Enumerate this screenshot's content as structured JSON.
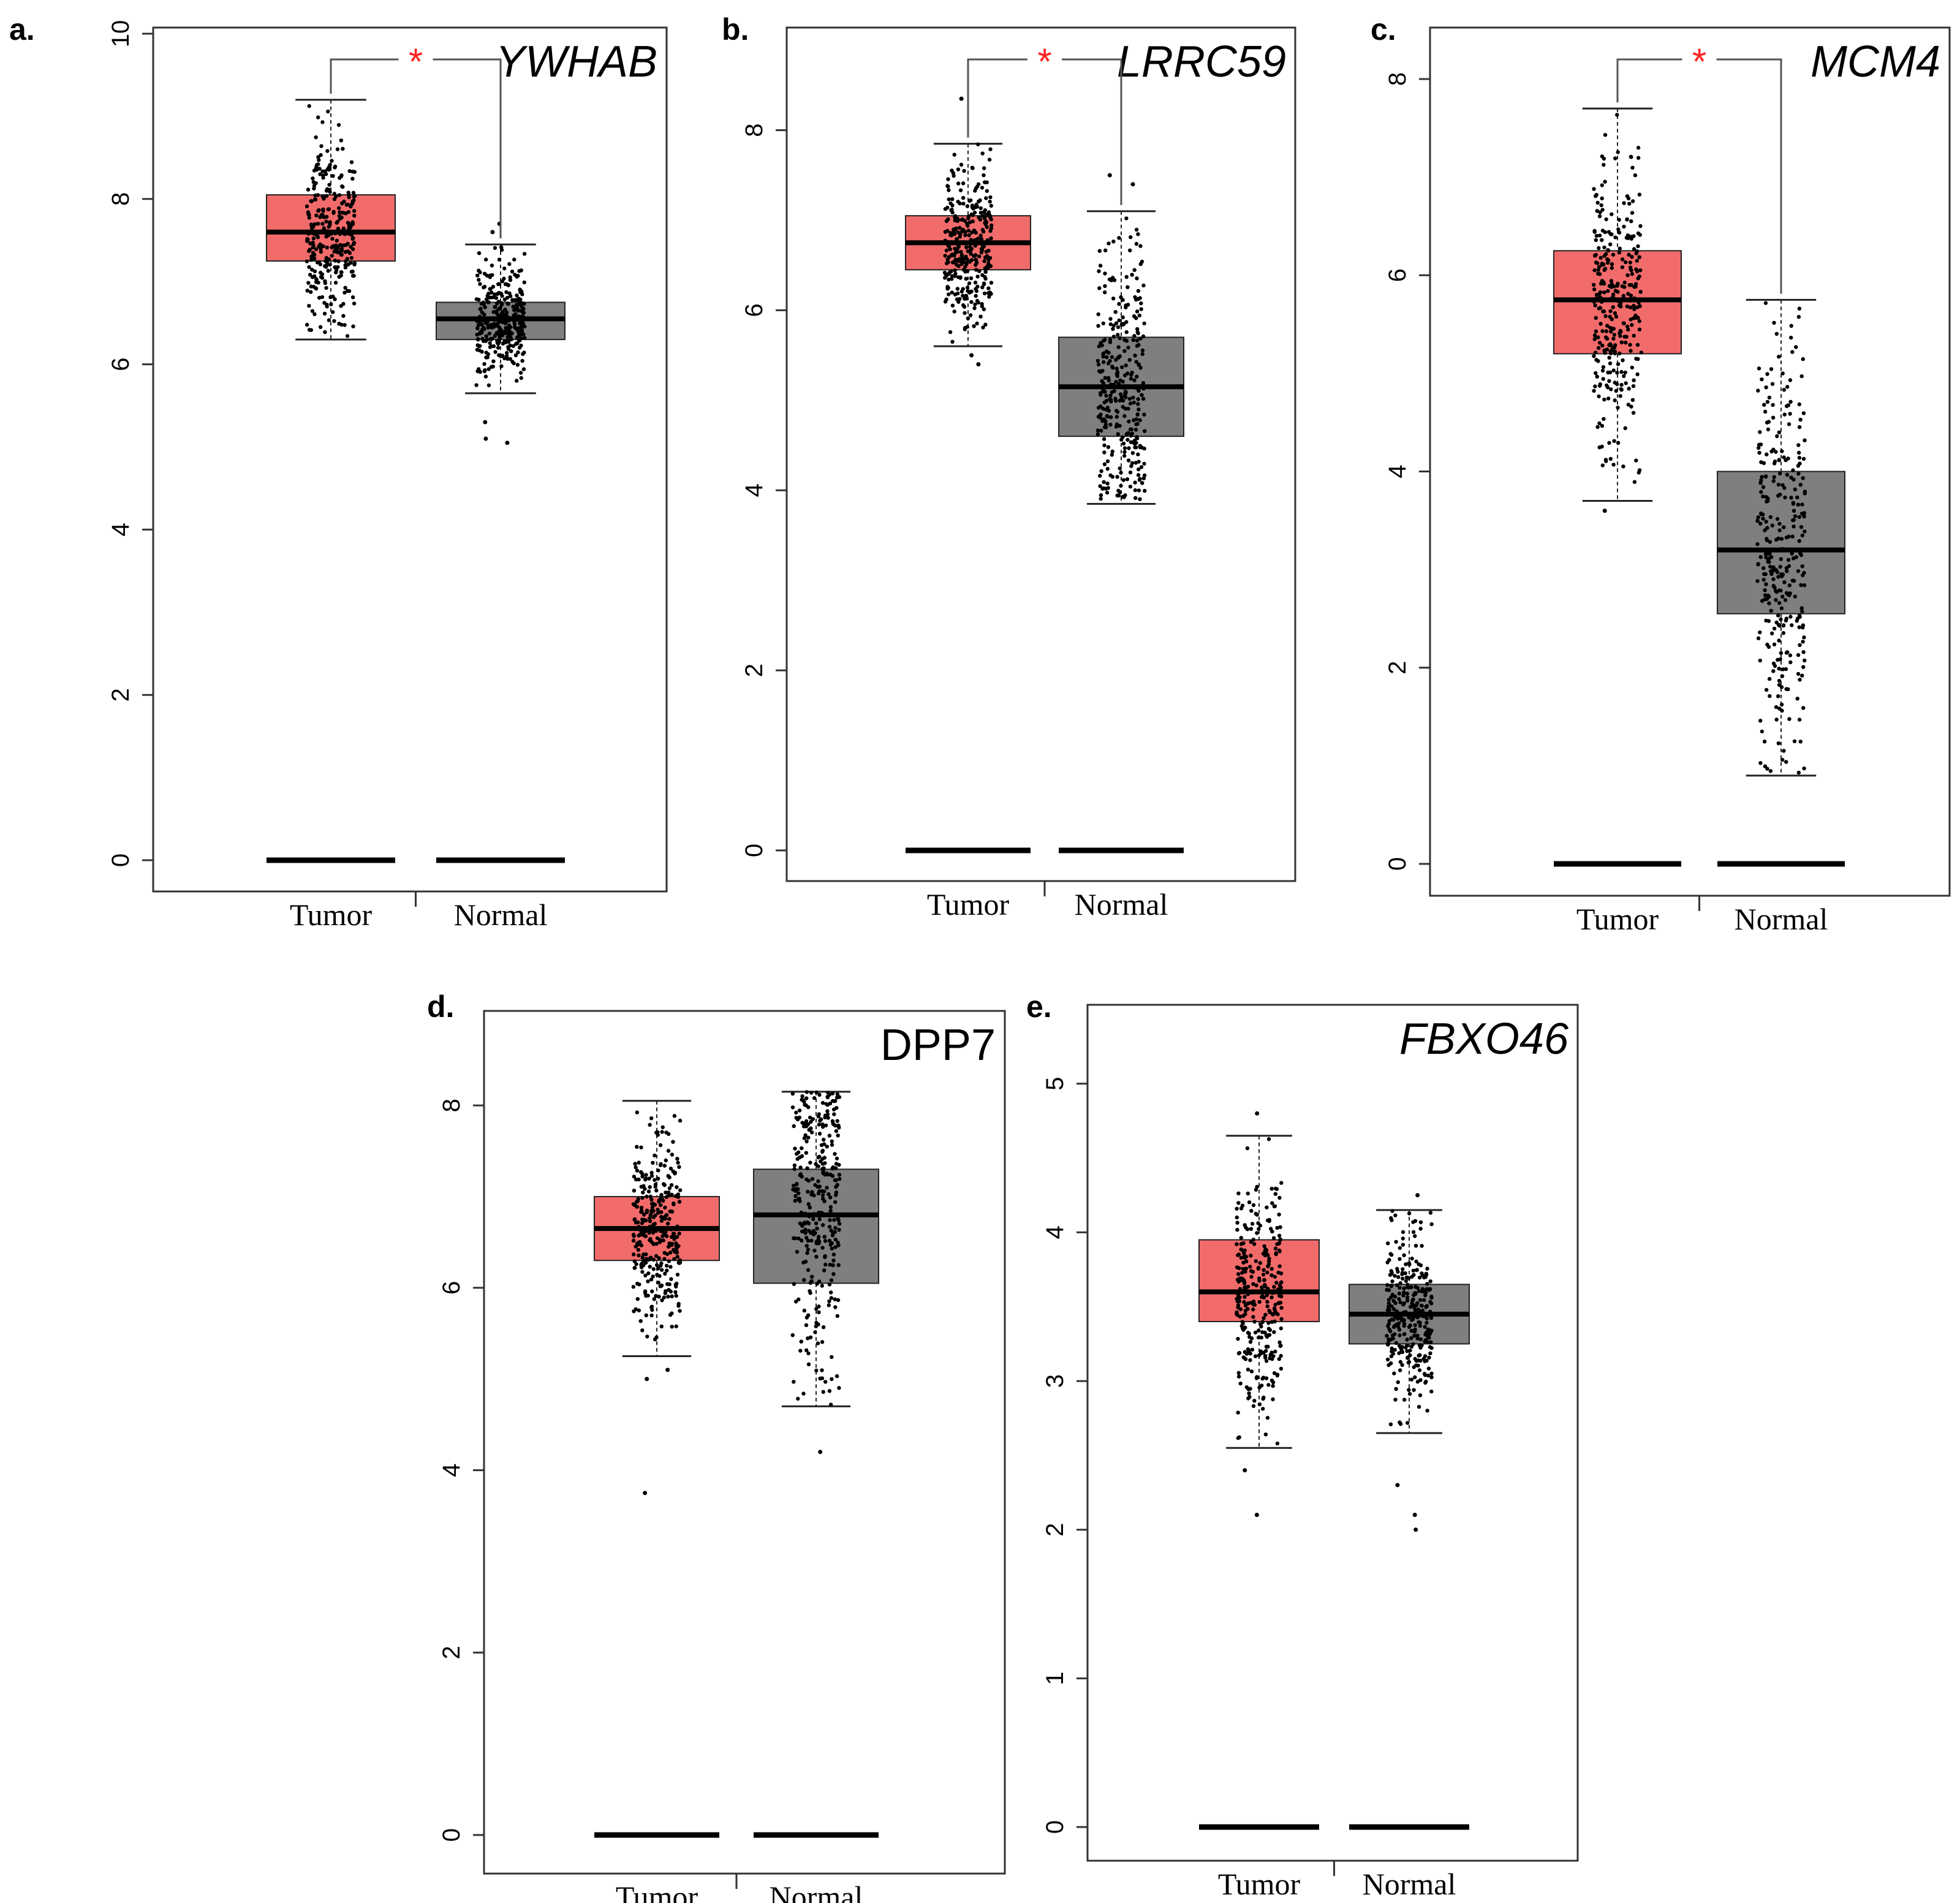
{
  "colors": {
    "tumor": "#f26b6b",
    "normal": "#7f7f7f",
    "star": "#ff2020",
    "axis": "#333333"
  },
  "chart_data": [
    {
      "type": "box",
      "panel_label": "a.",
      "title": "YWHAB",
      "title_italic": true,
      "categories": [
        "Tumor",
        "Normal"
      ],
      "ylim": [
        0,
        10
      ],
      "yticks": [
        0,
        2,
        4,
        6,
        8,
        10
      ],
      "significance": "*",
      "boxes": [
        {
          "name": "Tumor",
          "min": 6.3,
          "q1": 7.25,
          "median": 7.6,
          "q3": 8.05,
          "max": 9.2,
          "outliers": []
        },
        {
          "name": "Normal",
          "min": 5.65,
          "q1": 6.3,
          "median": 6.55,
          "q3": 6.75,
          "max": 7.45,
          "outliers": [
            5.05,
            5.1,
            5.3,
            7.6,
            7.7
          ]
        }
      ]
    },
    {
      "type": "box",
      "panel_label": "b.",
      "title": "LRRC59",
      "title_italic": true,
      "categories": [
        "Tumor",
        "Normal"
      ],
      "ylim": [
        0,
        8.8
      ],
      "yticks": [
        0,
        2,
        4,
        6,
        8
      ],
      "significance": "*",
      "boxes": [
        {
          "name": "Tumor",
          "min": 5.6,
          "q1": 6.45,
          "median": 6.75,
          "q3": 7.05,
          "max": 7.85,
          "outliers": [
            5.4,
            5.5,
            8.35
          ]
        },
        {
          "name": "Normal",
          "min": 3.85,
          "q1": 4.6,
          "median": 5.15,
          "q3": 5.7,
          "max": 7.1,
          "outliers": [
            7.4,
            7.5
          ]
        }
      ]
    },
    {
      "type": "box",
      "panel_label": "c.",
      "title": "MCM4",
      "title_italic": true,
      "categories": [
        "Tumor",
        "Normal"
      ],
      "ylim": [
        0,
        8.4
      ],
      "yticks": [
        0,
        2,
        4,
        6,
        8
      ],
      "significance": "*",
      "boxes": [
        {
          "name": "Tumor",
          "min": 3.7,
          "q1": 5.2,
          "median": 5.75,
          "q3": 6.25,
          "max": 7.7,
          "outliers": [
            3.6
          ]
        },
        {
          "name": "Normal",
          "min": 0.9,
          "q1": 2.55,
          "median": 3.2,
          "q3": 4.0,
          "max": 5.75,
          "outliers": []
        }
      ]
    },
    {
      "type": "box",
      "panel_label": "d.",
      "title": "DPP7",
      "title_italic": false,
      "categories": [
        "Tumor",
        "Normal"
      ],
      "ylim": [
        0,
        8.7
      ],
      "yticks": [
        0,
        2,
        4,
        6,
        8
      ],
      "significance": "",
      "boxes": [
        {
          "name": "Tumor",
          "min": 5.25,
          "q1": 6.3,
          "median": 6.65,
          "q3": 7.0,
          "max": 8.05,
          "outliers": [
            3.75,
            5.0,
            5.1
          ]
        },
        {
          "name": "Normal",
          "min": 4.7,
          "q1": 6.05,
          "median": 6.8,
          "q3": 7.3,
          "max": 8.15,
          "outliers": [
            4.2
          ]
        }
      ]
    },
    {
      "type": "box",
      "panel_label": "e.",
      "title": "FBXO46",
      "title_italic": true,
      "categories": [
        "Tumor",
        "Normal"
      ],
      "ylim": [
        0,
        5.3
      ],
      "yticks": [
        0,
        1,
        2,
        3,
        4,
        5
      ],
      "significance": "",
      "boxes": [
        {
          "name": "Tumor",
          "min": 2.55,
          "q1": 3.4,
          "median": 3.6,
          "q3": 3.95,
          "max": 4.65,
          "outliers": [
            2.1,
            2.4,
            4.8
          ]
        },
        {
          "name": "Normal",
          "min": 2.65,
          "q1": 3.25,
          "median": 3.45,
          "q3": 3.65,
          "max": 4.15,
          "outliers": [
            2.0,
            2.1,
            2.3,
            4.25
          ]
        }
      ]
    }
  ]
}
